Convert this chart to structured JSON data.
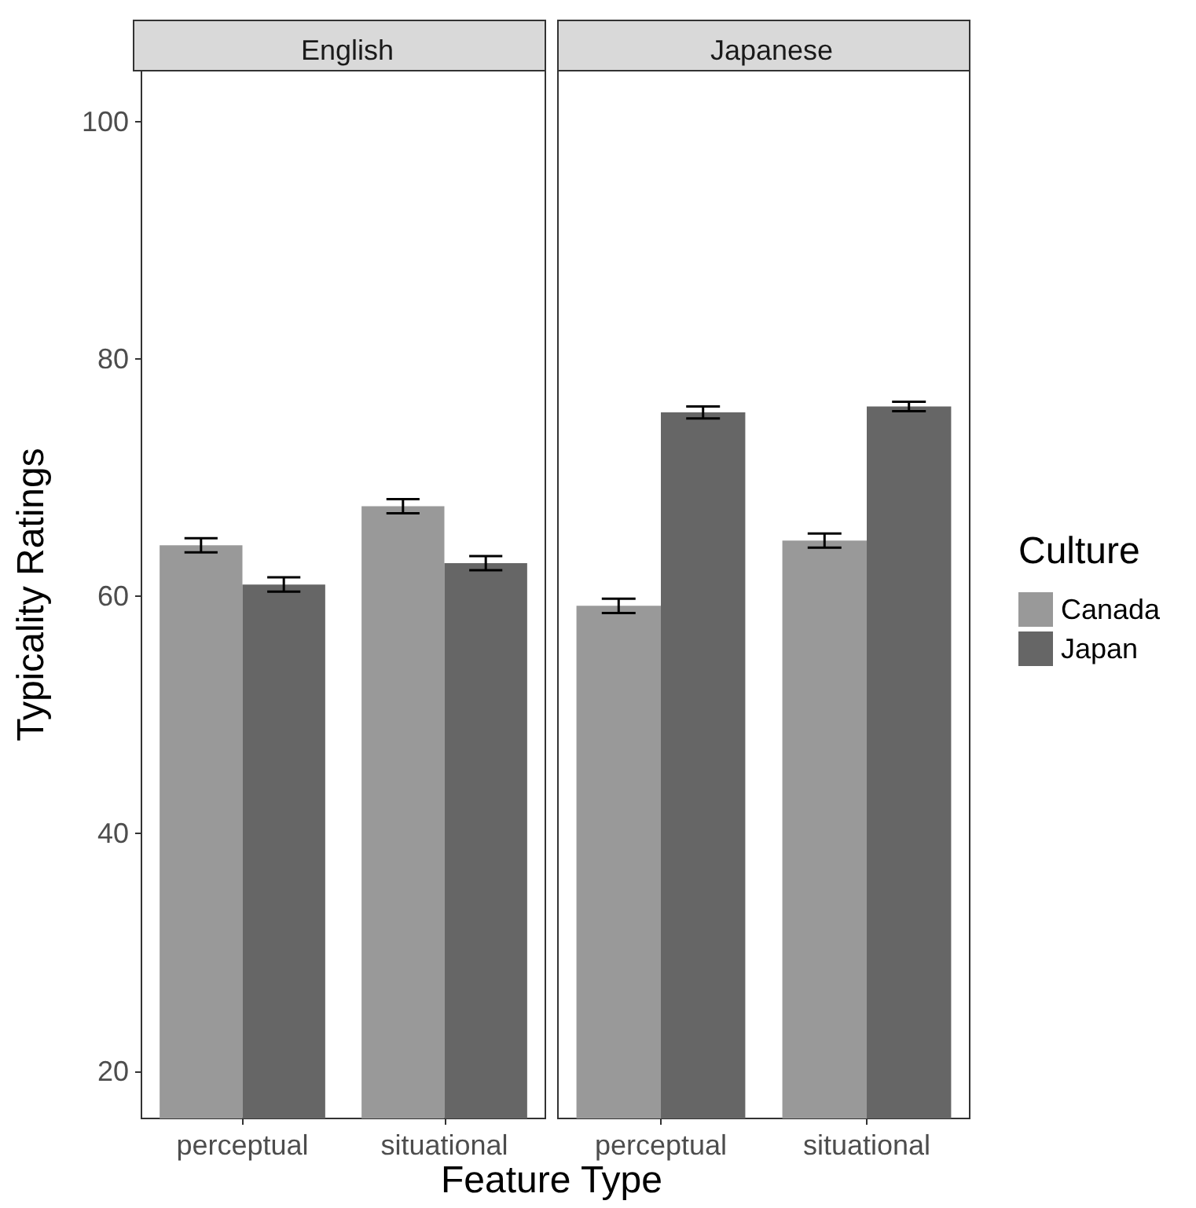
{
  "chart_data": [
    {
      "type": "bar",
      "title": "English",
      "ylabel": "Typicality Ratings",
      "xlabel": "Feature Type",
      "categories": [
        "perceptual",
        "situational"
      ],
      "ylim": [
        16.0,
        104.3
      ],
      "yticks": [
        20,
        40,
        60,
        80,
        100
      ],
      "grid": false,
      "legend": false,
      "series": [
        {
          "color": "#999999",
          "values": [
            64.3,
            67.6
          ],
          "errors": [
            0.6,
            0.6
          ]
        },
        {
          "color": "#666666",
          "values": [
            61.0,
            62.8
          ],
          "errors": [
            0.6,
            0.6
          ]
        }
      ]
    },
    {
      "type": "bar",
      "title": "Japanese",
      "legend_title": "Culture",
      "categories": [
        "perceptual",
        "situational"
      ],
      "ylim": [
        16.0,
        104.3
      ],
      "yticks": [
        20,
        40,
        60,
        80,
        100
      ],
      "tick_labels": "x",
      "grid": false,
      "legend": "right",
      "series": [
        {
          "name": "Canada",
          "color": "#999999",
          "values": [
            59.2,
            64.7
          ],
          "errors": [
            0.6,
            0.6
          ]
        },
        {
          "name": "Japan",
          "color": "#666666",
          "values": [
            75.5,
            76.0
          ],
          "errors": [
            0.5,
            0.4
          ]
        }
      ]
    }
  ]
}
